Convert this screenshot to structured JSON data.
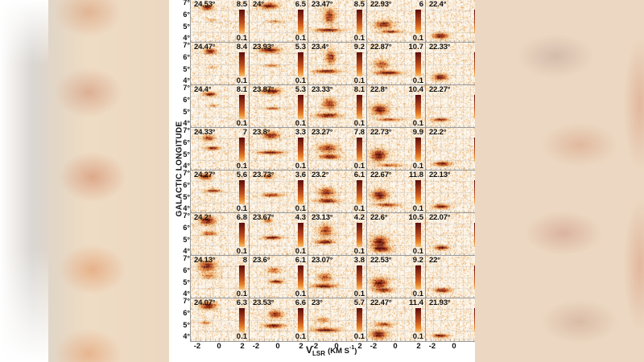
{
  "chart_data": {
    "type": "heatmap",
    "title": "",
    "description": "Grid of position-velocity maps (channel maps) at different galactic latitudes; each panel shows galactic longitude (4 to 7 deg) vs V_LSR (-2 to 2 km/s), with its own colorbar range",
    "xlabel": "V_LSR (KM S^-1)",
    "xlabel_main": "V",
    "xlabel_sub": "LSR",
    "xlabel_unit": "(KM S",
    "xlabel_sup": "-1",
    "xlabel_close": ")",
    "ylabel": "GALACTIC LONGITUDE",
    "xlim": [
      -2.5,
      2.5
    ],
    "ylim": [
      4,
      7
    ],
    "x_ticks": [
      "-2",
      "0",
      "2"
    ],
    "y_ticks": [
      "4°",
      "5°",
      "6°",
      "7°"
    ],
    "grid": true,
    "colormap": "white-orange-darkred",
    "colormap_colors": [
      "#fdf8f0",
      "#f6c47a",
      "#e8852c",
      "#c0501e",
      "#8a2a14",
      "#5a0d0d"
    ],
    "n_rows": 8,
    "n_cols_visible": 5,
    "panels": [
      [
        {
          "label": "24.53°",
          "cmax": "8.5",
          "cmin": "0.1",
          "features": [
            [
              -0.8,
              6.5,
              0.6,
              0.18,
              1.0
            ],
            [
              -0.3,
              5.6,
              0.5,
              0.1,
              0.4
            ]
          ]
        },
        {
          "label": "24°",
          "cmax": "6.5",
          "cmin": "0.1",
          "features": [
            [
              -0.5,
              6.6,
              0.9,
              0.2,
              1.0
            ],
            [
              0.2,
              5.5,
              0.8,
              0.1,
              0.5
            ]
          ]
        },
        {
          "label": "23.47°",
          "cmax": "8.5",
          "cmin": "0.1",
          "features": [
            [
              -0.3,
              5.9,
              0.6,
              0.5,
              0.8
            ],
            [
              -0.5,
              4.9,
              1.3,
              0.12,
              1.0
            ]
          ]
        },
        {
          "label": "22.93°",
          "cmax": "6",
          "cmin": "0.1",
          "features": [
            [
              -0.8,
              5.3,
              0.9,
              0.25,
              0.9
            ],
            [
              0.0,
              4.8,
              1.0,
              0.12,
              0.8
            ]
          ]
        },
        {
          "label": "22.4°",
          "cmax": "8.",
          "cmin": "0.",
          "features": [
            [
              -1.0,
              4.5,
              0.8,
              0.2,
              1.0
            ]
          ]
        }
      ],
      [
        {
          "label": "24.47°",
          "cmax": "8.4",
          "cmin": "0.1",
          "features": [
            [
              -0.5,
              6.4,
              0.6,
              0.18,
              1.0
            ],
            [
              -0.2,
              5.3,
              0.4,
              0.1,
              0.3
            ]
          ]
        },
        {
          "label": "23.93°",
          "cmax": "5.3",
          "cmin": "0.1",
          "features": [
            [
              -0.4,
              6.5,
              1.0,
              0.2,
              1.0
            ],
            [
              -0.2,
              5.4,
              0.8,
              0.1,
              0.6
            ]
          ]
        },
        {
          "label": "23.4°",
          "cmax": "9.2",
          "cmin": "0.1",
          "features": [
            [
              -0.2,
              6.0,
              0.5,
              0.5,
              0.8
            ],
            [
              -0.6,
              5.0,
              1.2,
              0.12,
              1.0
            ]
          ]
        },
        {
          "label": "22.87°",
          "cmax": "10.7",
          "cmin": "0.1",
          "features": [
            [
              -1.0,
              5.5,
              0.7,
              0.3,
              0.7
            ],
            [
              -0.3,
              4.9,
              1.3,
              0.15,
              1.0
            ]
          ]
        },
        {
          "label": "22.33°",
          "cmax": "5.",
          "cmin": "0.",
          "features": [
            [
              -1.0,
              4.6,
              0.7,
              0.22,
              1.0
            ]
          ]
        }
      ],
      [
        {
          "label": "24.4°",
          "cmax": "8.1",
          "cmin": "0.1",
          "features": [
            [
              -0.5,
              6.4,
              0.6,
              0.15,
              1.0
            ],
            [
              -0.2,
              5.6,
              0.5,
              0.1,
              0.5
            ]
          ]
        },
        {
          "label": "23.87°",
          "cmax": "5.3",
          "cmin": "0.1",
          "features": [
            [
              -0.2,
              6.6,
              0.9,
              0.2,
              1.0
            ],
            [
              -0.1,
              5.4,
              0.8,
              0.1,
              0.7
            ]
          ]
        },
        {
          "label": "23.33°",
          "cmax": "8.1",
          "cmin": "0.1",
          "features": [
            [
              -0.3,
              5.7,
              0.7,
              0.4,
              0.8
            ],
            [
              -0.5,
              4.9,
              1.2,
              0.15,
              1.0
            ]
          ]
        },
        {
          "label": "22.8°",
          "cmax": "10.4",
          "cmin": "0.1",
          "features": [
            [
              -1.2,
              5.3,
              0.8,
              0.35,
              1.0
            ],
            [
              -0.2,
              4.6,
              1.2,
              0.1,
              0.7
            ]
          ]
        },
        {
          "label": "22.27°",
          "cmax": "4.",
          "cmin": "0.",
          "features": [
            [
              -1.0,
              4.6,
              0.8,
              0.12,
              0.9
            ]
          ]
        }
      ],
      [
        {
          "label": "24.33°",
          "cmax": "7",
          "cmin": "0.1",
          "features": [
            [
              -0.7,
              6.3,
              0.6,
              0.2,
              0.8
            ],
            [
              -0.2,
              5.6,
              0.7,
              0.12,
              1.0
            ]
          ]
        },
        {
          "label": "23.8°",
          "cmax": "3.3",
          "cmin": "0.1",
          "features": [
            [
              -0.3,
              6.5,
              0.8,
              0.25,
              0.9
            ],
            [
              -0.3,
              5.3,
              1.2,
              0.12,
              1.0
            ]
          ]
        },
        {
          "label": "23.27°",
          "cmax": "7.8",
          "cmin": "0.1",
          "features": [
            [
              -0.5,
              5.6,
              1.0,
              0.3,
              0.8
            ],
            [
              -0.3,
              5.0,
              1.0,
              0.15,
              1.0
            ]
          ]
        },
        {
          "label": "22.73°",
          "cmax": "9.9",
          "cmin": "0.1",
          "features": [
            [
              -1.3,
              5.1,
              0.8,
              0.4,
              1.0
            ],
            [
              -0.2,
              4.4,
              1.2,
              0.1,
              0.7
            ]
          ]
        },
        {
          "label": "22.2°",
          "cmax": "4.",
          "cmin": "0.",
          "features": [
            [
              -0.8,
              4.5,
              0.8,
              0.15,
              1.0
            ]
          ]
        }
      ],
      [
        {
          "label": "24.27°",
          "cmax": "5.6",
          "cmin": "0.1",
          "features": [
            [
              -1.0,
              6.6,
              0.6,
              0.2,
              1.0
            ],
            [
              -0.2,
              5.6,
              0.8,
              0.12,
              0.8
            ]
          ]
        },
        {
          "label": "23.73°",
          "cmax": "3.6",
          "cmin": "0.1",
          "features": [
            [
              -0.6,
              6.6,
              0.5,
              0.15,
              0.8
            ],
            [
              -0.2,
              5.3,
              1.0,
              0.12,
              0.9
            ]
          ]
        },
        {
          "label": "23.2°",
          "cmax": "6.1",
          "cmin": "0.1",
          "features": [
            [
              -0.6,
              5.5,
              0.8,
              0.3,
              0.9
            ],
            [
              -0.6,
              4.9,
              1.0,
              0.15,
              1.0
            ]
          ]
        },
        {
          "label": "22.67°",
          "cmax": "11.8",
          "cmin": "0.1",
          "features": [
            [
              -1.2,
              5.3,
              0.8,
              0.35,
              1.0
            ],
            [
              -0.4,
              4.6,
              1.2,
              0.12,
              0.8
            ]
          ]
        },
        {
          "label": "22.13°",
          "cmax": "4.",
          "cmin": "0.",
          "features": [
            [
              -0.9,
              4.5,
              0.8,
              0.15,
              1.0
            ]
          ]
        }
      ],
      [
        {
          "label": "24.2°",
          "cmax": "6.8",
          "cmin": "0.1",
          "features": [
            [
              -0.8,
              6.5,
              0.8,
              0.3,
              1.0
            ],
            [
              -0.6,
              5.6,
              0.8,
              0.15,
              0.7
            ]
          ]
        },
        {
          "label": "23.67°",
          "cmax": "4.3",
          "cmin": "0.1",
          "features": [
            [
              -0.6,
              6.5,
              0.5,
              0.15,
              0.7
            ],
            [
              -0.1,
              5.3,
              0.9,
              0.12,
              1.0
            ]
          ]
        },
        {
          "label": "23.13°",
          "cmax": "4.2",
          "cmin": "0.1",
          "features": [
            [
              -0.7,
              5.8,
              0.7,
              0.4,
              0.8
            ],
            [
              -0.8,
              5.0,
              0.9,
              0.15,
              1.0
            ]
          ]
        },
        {
          "label": "22.6°",
          "cmax": "10.5",
          "cmin": "0.1",
          "features": [
            [
              -1.2,
              5.0,
              0.8,
              0.4,
              1.0
            ],
            [
              -1.0,
              4.5,
              0.9,
              0.2,
              0.9
            ]
          ]
        },
        {
          "label": "22.07°",
          "cmax": "4.",
          "cmin": "0.",
          "features": [
            [
              -0.9,
              4.6,
              0.7,
              0.15,
              1.0
            ]
          ]
        }
      ],
      [
        {
          "label": "24.13°",
          "cmax": "8",
          "cmin": "0.1",
          "features": [
            [
              -0.8,
              6.3,
              0.9,
              0.35,
              0.9
            ],
            [
              -0.6,
              5.6,
              0.9,
              0.2,
              0.5
            ]
          ]
        },
        {
          "label": "23.6°",
          "cmax": "6.1",
          "cmin": "0.1",
          "features": [
            [
              0.0,
              6.0,
              0.7,
              0.2,
              0.6
            ],
            [
              0.3,
              5.2,
              0.7,
              0.12,
              1.0
            ]
          ]
        },
        {
          "label": "23.07°",
          "cmax": "3.8",
          "cmin": "0.1",
          "features": [
            [
              -0.8,
              5.5,
              0.7,
              0.3,
              0.7
            ],
            [
              -0.9,
              4.9,
              1.1,
              0.15,
              1.0
            ]
          ]
        },
        {
          "label": "22.53°",
          "cmax": "9.2",
          "cmin": "0.1",
          "features": [
            [
              -1.2,
              5.1,
              0.8,
              0.35,
              1.0
            ],
            [
              -0.8,
              4.6,
              0.9,
              0.15,
              0.8
            ]
          ]
        },
        {
          "label": "22°",
          "cmax": "5.",
          "cmin": "0.",
          "features": [
            [
              -0.8,
              4.6,
              0.8,
              0.15,
              1.0
            ]
          ]
        }
      ],
      [
        {
          "label": "24.07°",
          "cmax": "6.3",
          "cmin": "0.1",
          "features": [
            [
              -0.7,
              6.5,
              0.8,
              0.25,
              1.0
            ],
            [
              -1.0,
              5.3,
              0.5,
              0.1,
              0.6
            ]
          ]
        },
        {
          "label": "23.53°",
          "cmax": "6.6",
          "cmin": "0.1",
          "features": [
            [
              0.2,
              5.9,
              0.7,
              0.25,
              0.9
            ],
            [
              0.0,
              5.1,
              1.0,
              0.15,
              1.0
            ]
          ]
        },
        {
          "label": "23°",
          "cmax": "5.7",
          "cmin": "0.1",
          "features": [
            [
              -1.0,
              5.5,
              0.7,
              0.2,
              0.5
            ],
            [
              -0.7,
              4.8,
              1.3,
              0.15,
              1.0
            ]
          ]
        },
        {
          "label": "22.47°",
          "cmax": "11.4",
          "cmin": "0.1",
          "features": [
            [
              -1.3,
              4.5,
              0.8,
              0.3,
              1.0
            ],
            [
              -0.8,
              5.2,
              0.9,
              0.15,
              0.7
            ]
          ]
        },
        {
          "label": "21.93°",
          "cmax": "7.",
          "cmin": "0.",
          "features": [
            [
              -1.0,
              4.4,
              0.8,
              0.12,
              1.0
            ]
          ]
        }
      ]
    ]
  },
  "axes": {
    "ylabel": "GALACTIC LONGITUDE",
    "y_ticks": [
      "7°",
      "6°",
      "5°",
      "4°"
    ],
    "x_ticks": [
      "-2",
      "0",
      "2"
    ],
    "x_partial_tick": "2"
  }
}
